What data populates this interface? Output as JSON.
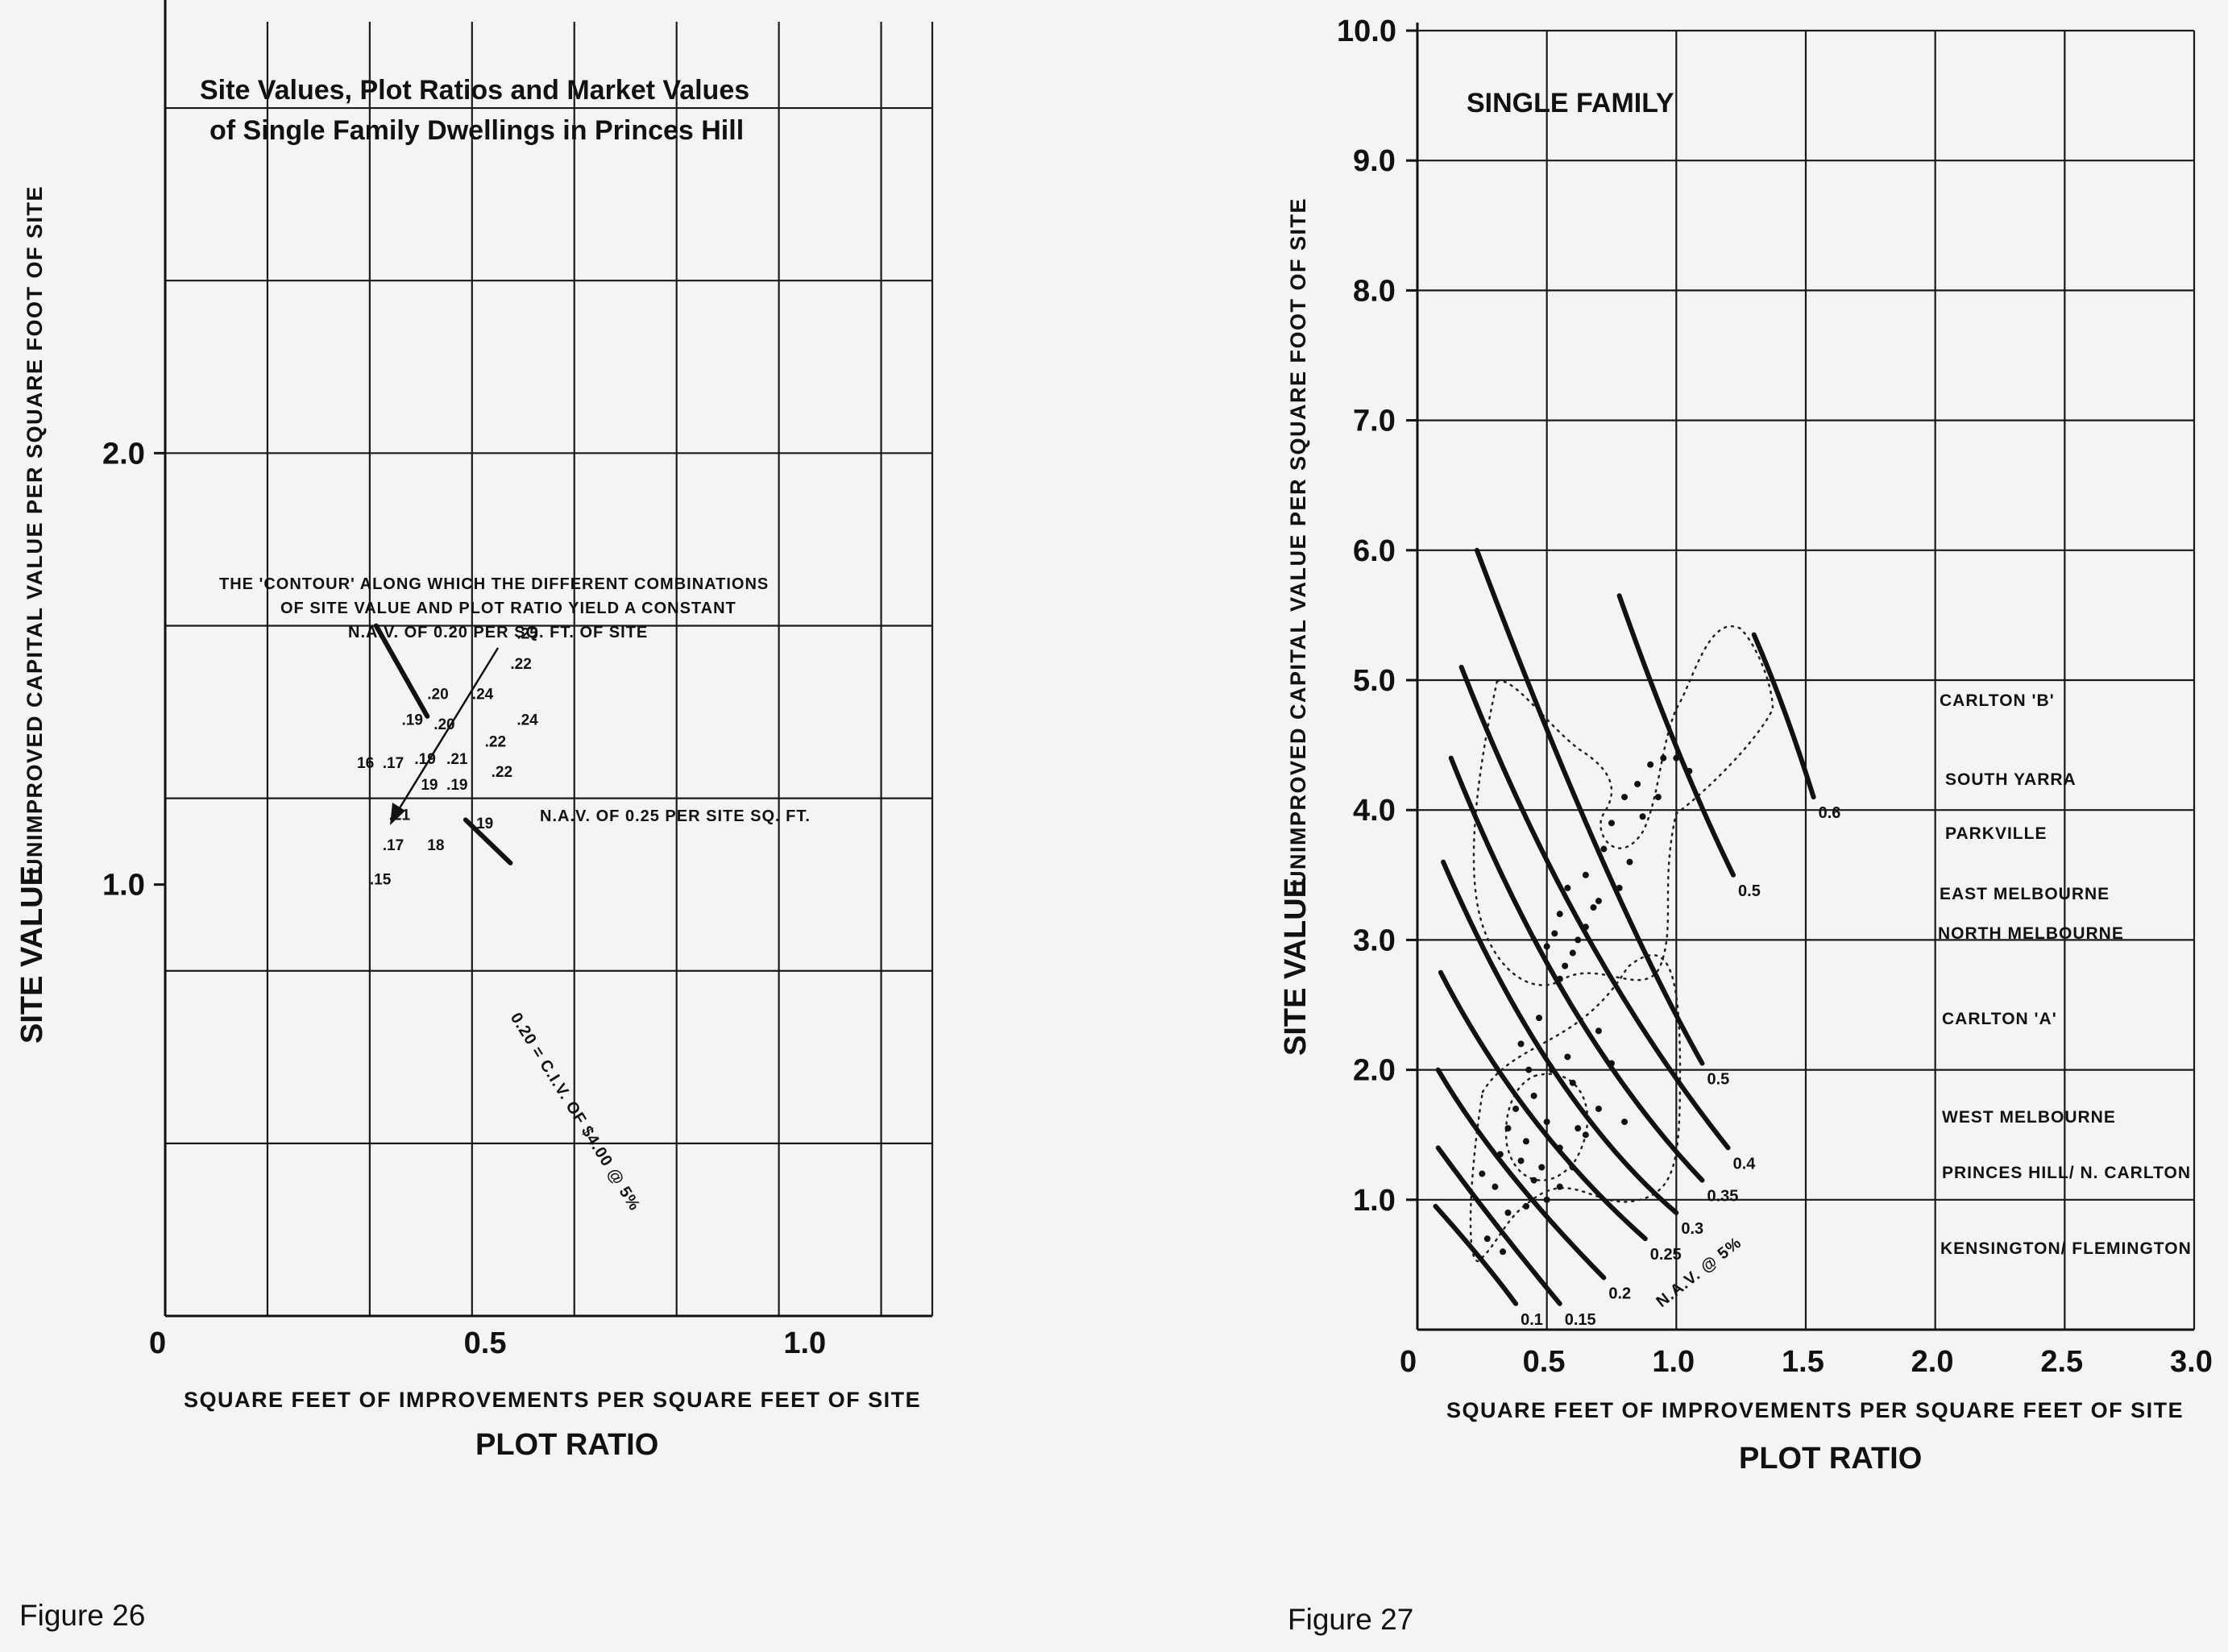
{
  "figures": [
    {
      "caption": "Figure 26",
      "title_line1": "Site Values, Plot Ratios and Market Values",
      "title_line2": "of Single Family Dwellings in Princes Hill",
      "annotation_line1": "THE 'CONTOUR' ALONG WHICH THE DIFFERENT COMBINATIONS",
      "annotation_line2": "OF SITE VALUE AND PLOT RATIO YIELD A CONSTANT",
      "annotation_line3": "N.A.V. OF 0.20 PER SQ. FT. OF SITE",
      "nav_label": "N.A.V. OF 0.25 PER SITE SQ. FT.",
      "contour_label": "0.20 = C.I.V. OF $4.00 @ 5%",
      "xlabel_line1": "SQUARE FEET OF IMPROVEMENTS PER SQUARE FEET OF SITE",
      "xlabel_line2": "PLOT RATIO",
      "ylabel_main": "SITE VALUE",
      "ylabel_sub": "UNIMPROVED CAPITAL VALUE PER SQUARE FOOT OF SITE"
    },
    {
      "caption": "Figure 27",
      "title": "SINGLE FAMILY",
      "xlabel_line1": "SQUARE FEET OF IMPROVEMENTS PER SQUARE FEET OF SITE",
      "xlabel_line2": "PLOT RATIO",
      "ylabel_main": "SITE VALUE",
      "ylabel_sub": "UNIMPROVED CAPITAL VALUE PER SQUARE FOOT OF SITE",
      "nav_label": "N.A.V. @ 5%",
      "legend": [
        "CARLTON 'B'",
        "SOUTH YARRA",
        "PARKVILLE",
        "EAST MELBOURNE",
        "NORTH MELBOURNE",
        "CARLTON 'A'",
        "WEST MELBOURNE",
        "PRINCES HILL/ N. CARLTON",
        "KENSINGTON/ FLEMINGTON"
      ]
    }
  ],
  "chart_data": [
    {
      "type": "scatter",
      "title": "Site Values, Plot Ratios and Market Values of Single Family Dwellings in Princes Hill",
      "xlabel": "SQUARE FEET OF IMPROVEMENTS PER SQUARE FEET OF SITE",
      "ylabel": "UNIMPROVED CAPITAL VALUE PER SQUARE FOOT OF SITE",
      "xlim": [
        0,
        1.2
      ],
      "ylim": [
        0,
        3.0
      ],
      "x_ticks": [
        "0",
        "0.5",
        "1.0"
      ],
      "x_tick_values": [
        0,
        0.5,
        1.0
      ],
      "y_ticks": [
        "1.0",
        "2.0"
      ],
      "y_tick_values": [
        1.0,
        2.0
      ],
      "grid": true,
      "points": [
        {
          "x": 0.55,
          "y": 1.57,
          "label": ".25"
        },
        {
          "x": 0.54,
          "y": 1.5,
          "label": ".22"
        },
        {
          "x": 0.41,
          "y": 1.43,
          "label": ".20"
        },
        {
          "x": 0.48,
          "y": 1.43,
          "label": ".24"
        },
        {
          "x": 0.37,
          "y": 1.37,
          "label": ".19"
        },
        {
          "x": 0.42,
          "y": 1.36,
          "label": ".20"
        },
        {
          "x": 0.55,
          "y": 1.37,
          "label": ".24"
        },
        {
          "x": 0.5,
          "y": 1.32,
          "label": ".22"
        },
        {
          "x": 0.3,
          "y": 1.27,
          "label": "16"
        },
        {
          "x": 0.34,
          "y": 1.27,
          "label": ".17"
        },
        {
          "x": 0.39,
          "y": 1.28,
          "label": ".19"
        },
        {
          "x": 0.44,
          "y": 1.28,
          "label": ".21"
        },
        {
          "x": 0.51,
          "y": 1.25,
          "label": ".22"
        },
        {
          "x": 0.4,
          "y": 1.22,
          "label": "19"
        },
        {
          "x": 0.44,
          "y": 1.22,
          "label": ".19"
        },
        {
          "x": 0.35,
          "y": 1.15,
          "label": ".21"
        },
        {
          "x": 0.48,
          "y": 1.13,
          "label": ".19"
        },
        {
          "x": 0.34,
          "y": 1.08,
          "label": ".17"
        },
        {
          "x": 0.41,
          "y": 1.08,
          "label": "18"
        },
        {
          "x": 0.32,
          "y": 1.0,
          "label": ".15"
        }
      ],
      "contours": [
        {
          "label": "0.20",
          "segments": [
            [
              [
                0.33,
                1.6
              ],
              [
                0.41,
                1.39
              ]
            ],
            [
              [
                0.47,
                1.15
              ],
              [
                0.54,
                1.05
              ]
            ]
          ]
        }
      ]
    },
    {
      "type": "line",
      "title": "SINGLE FAMILY",
      "xlabel": "SQUARE FEET OF IMPROVEMENTS PER SQUARE FEET OF SITE",
      "ylabel": "UNIMPROVED CAPITAL VALUE PER SQUARE FOOT OF SITE",
      "xlim": [
        0,
        3.0
      ],
      "ylim": [
        0,
        10.0
      ],
      "x_ticks": [
        "0",
        "0.5",
        "1.0",
        "1.5",
        "2.0",
        "2.5",
        "3.0"
      ],
      "x_tick_values": [
        0,
        0.5,
        1.0,
        1.5,
        2.0,
        2.5,
        3.0
      ],
      "y_ticks": [
        "1.0",
        "2.0",
        "3.0",
        "4.0",
        "5.0",
        "6.0",
        "7.0",
        "8.0",
        "9.0",
        "10.0"
      ],
      "y_tick_values": [
        1.0,
        2.0,
        3.0,
        4.0,
        5.0,
        6.0,
        7.0,
        8.0,
        9.0,
        10.0
      ],
      "grid": true,
      "series": [
        {
          "name": "0.1",
          "points": [
            [
              0.07,
              0.95
            ],
            [
              0.25,
              0.55
            ],
            [
              0.38,
              0.2
            ]
          ]
        },
        {
          "name": "0.15",
          "points": [
            [
              0.08,
              1.4
            ],
            [
              0.3,
              0.8
            ],
            [
              0.55,
              0.2
            ]
          ]
        },
        {
          "name": "0.2",
          "points": [
            [
              0.08,
              2.0
            ],
            [
              0.3,
              1.25
            ],
            [
              0.72,
              0.4
            ]
          ]
        },
        {
          "name": "0.25",
          "points": [
            [
              0.09,
              2.75
            ],
            [
              0.4,
              1.55
            ],
            [
              0.88,
              0.7
            ]
          ]
        },
        {
          "name": "0.3",
          "points": [
            [
              0.1,
              3.6
            ],
            [
              0.5,
              1.75
            ],
            [
              1.0,
              0.9
            ]
          ]
        },
        {
          "name": "0.35",
          "points": [
            [
              0.13,
              4.4
            ],
            [
              0.55,
              2.3
            ],
            [
              1.1,
              1.15
            ]
          ]
        },
        {
          "name": "0.4",
          "points": [
            [
              0.17,
              5.1
            ],
            [
              0.6,
              2.9
            ],
            [
              1.2,
              1.4
            ]
          ]
        },
        {
          "name": "0.5",
          "points": [
            [
              0.23,
              6.0
            ],
            [
              0.72,
              3.4
            ],
            [
              1.1,
              2.05
            ]
          ]
        },
        {
          "name": "0.5",
          "points": [
            [
              0.78,
              5.65
            ],
            [
              1.0,
              4.4
            ],
            [
              1.22,
              3.5
            ]
          ]
        },
        {
          "name": "0.6",
          "points": [
            [
              1.3,
              5.35
            ],
            [
              1.42,
              4.8
            ],
            [
              1.53,
              4.1
            ]
          ]
        }
      ],
      "scatter_points": [
        [
          0.3,
          1.1
        ],
        [
          0.25,
          1.2
        ],
        [
          0.35,
          0.9
        ],
        [
          0.4,
          1.3
        ],
        [
          0.45,
          1.15
        ],
        [
          0.5,
          1.0
        ],
        [
          0.55,
          1.1
        ],
        [
          0.6,
          1.25
        ],
        [
          0.55,
          1.4
        ],
        [
          0.65,
          1.5
        ],
        [
          0.7,
          1.7
        ],
        [
          0.5,
          1.6
        ],
        [
          0.45,
          1.8
        ],
        [
          0.6,
          1.9
        ],
        [
          0.75,
          2.05
        ],
        [
          0.8,
          1.6
        ],
        [
          0.62,
          1.55
        ],
        [
          0.38,
          1.7
        ],
        [
          0.42,
          1.45
        ],
        [
          0.48,
          1.25
        ],
        [
          0.35,
          1.55
        ],
        [
          0.58,
          2.1
        ],
        [
          0.7,
          2.3
        ],
        [
          0.52,
          2.0
        ],
        [
          0.47,
          2.4
        ],
        [
          0.55,
          2.7
        ],
        [
          0.6,
          2.9
        ],
        [
          0.65,
          3.1
        ],
        [
          0.55,
          3.2
        ],
        [
          0.5,
          2.95
        ],
        [
          0.58,
          3.4
        ],
        [
          0.65,
          3.5
        ],
        [
          0.7,
          3.3
        ],
        [
          0.72,
          3.7
        ],
        [
          0.75,
          3.9
        ],
        [
          0.8,
          4.1
        ],
        [
          0.85,
          4.2
        ],
        [
          0.9,
          4.35
        ],
        [
          0.95,
          4.4
        ],
        [
          1.0,
          4.4
        ],
        [
          1.05,
          4.3
        ],
        [
          0.93,
          4.1
        ],
        [
          0.87,
          3.95
        ],
        [
          0.82,
          3.6
        ],
        [
          0.78,
          3.4
        ],
        [
          0.62,
          3.0
        ],
        [
          0.57,
          2.8
        ],
        [
          0.53,
          3.05
        ],
        [
          0.68,
          3.25
        ],
        [
          0.43,
          2.0
        ],
        [
          0.4,
          2.2
        ],
        [
          0.32,
          1.35
        ],
        [
          0.27,
          0.7
        ],
        [
          0.33,
          0.6
        ],
        [
          0.42,
          0.95
        ]
      ]
    }
  ]
}
